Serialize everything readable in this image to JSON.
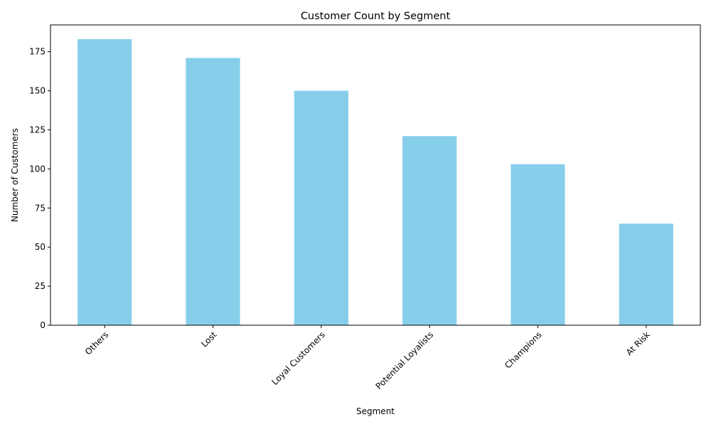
{
  "chart_data": {
    "type": "bar",
    "title": "Customer Count by Segment",
    "xlabel": "Segment",
    "ylabel": "Number of Customers",
    "categories": [
      "Others",
      "Lost",
      "Loyal Customers",
      "Potential Loyalists",
      "Champions",
      "At Risk"
    ],
    "values": [
      183,
      171,
      150,
      121,
      103,
      65
    ],
    "ylim": [
      0,
      192.15
    ],
    "yticks": [
      0,
      25,
      50,
      75,
      100,
      125,
      150,
      175
    ],
    "ytick_labels": [
      "0",
      "25",
      "50",
      "75",
      "100",
      "125",
      "150",
      "175"
    ],
    "bar_color": "#87ceeb",
    "grid": false,
    "legend": "none",
    "xtick_rotation_deg": 45
  }
}
